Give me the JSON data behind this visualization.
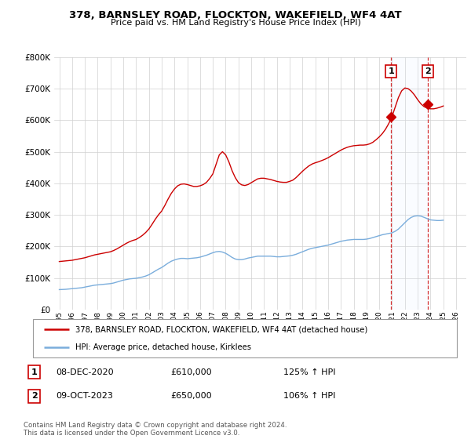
{
  "title": "378, BARNSLEY ROAD, FLOCKTON, WAKEFIELD, WF4 4AT",
  "subtitle": "Price paid vs. HM Land Registry's House Price Index (HPI)",
  "legend_line1": "378, BARNSLEY ROAD, FLOCKTON, WAKEFIELD, WF4 4AT (detached house)",
  "legend_line2": "HPI: Average price, detached house, Kirklees",
  "annotation1_date": "08-DEC-2020",
  "annotation1_price": "£610,000",
  "annotation1_hpi": "125% ↑ HPI",
  "annotation2_date": "09-OCT-2023",
  "annotation2_price": "£650,000",
  "annotation2_hpi": "106% ↑ HPI",
  "footer1": "Contains HM Land Registry data © Crown copyright and database right 2024.",
  "footer2": "This data is licensed under the Open Government Licence v3.0.",
  "red_color": "#cc0000",
  "blue_color": "#7aaddc",
  "shade_color": "#ddeeff",
  "ylim": [
    0,
    800000
  ],
  "xlim_start": 1994.6,
  "xlim_end": 2026.8,
  "sale1_x": 2020.92,
  "sale1_y": 610000,
  "sale2_x": 2023.77,
  "sale2_y": 650000,
  "hpi_x": [
    1995.0,
    1995.25,
    1995.5,
    1995.75,
    1996.0,
    1996.25,
    1996.5,
    1996.75,
    1997.0,
    1997.25,
    1997.5,
    1997.75,
    1998.0,
    1998.25,
    1998.5,
    1998.75,
    1999.0,
    1999.25,
    1999.5,
    1999.75,
    2000.0,
    2000.25,
    2000.5,
    2000.75,
    2001.0,
    2001.25,
    2001.5,
    2001.75,
    2002.0,
    2002.25,
    2002.5,
    2002.75,
    2003.0,
    2003.25,
    2003.5,
    2003.75,
    2004.0,
    2004.25,
    2004.5,
    2004.75,
    2005.0,
    2005.25,
    2005.5,
    2005.75,
    2006.0,
    2006.25,
    2006.5,
    2006.75,
    2007.0,
    2007.25,
    2007.5,
    2007.75,
    2008.0,
    2008.25,
    2008.5,
    2008.75,
    2009.0,
    2009.25,
    2009.5,
    2009.75,
    2010.0,
    2010.25,
    2010.5,
    2010.75,
    2011.0,
    2011.25,
    2011.5,
    2011.75,
    2012.0,
    2012.25,
    2012.5,
    2012.75,
    2013.0,
    2013.25,
    2013.5,
    2013.75,
    2014.0,
    2014.25,
    2014.5,
    2014.75,
    2015.0,
    2015.25,
    2015.5,
    2015.75,
    2016.0,
    2016.25,
    2016.5,
    2016.75,
    2017.0,
    2017.25,
    2017.5,
    2017.75,
    2018.0,
    2018.25,
    2018.5,
    2018.75,
    2019.0,
    2019.25,
    2019.5,
    2019.75,
    2020.0,
    2020.25,
    2020.5,
    2020.75,
    2021.0,
    2021.25,
    2021.5,
    2021.75,
    2022.0,
    2022.25,
    2022.5,
    2022.75,
    2023.0,
    2023.25,
    2023.5,
    2023.75,
    2024.0,
    2024.25,
    2024.5,
    2024.75,
    2025.0
  ],
  "hpi_y": [
    63000,
    63500,
    64000,
    65000,
    66000,
    67000,
    68000,
    69000,
    71000,
    73000,
    75000,
    77000,
    78000,
    79000,
    80000,
    81000,
    82000,
    84000,
    87000,
    90000,
    93000,
    95000,
    97000,
    98000,
    99000,
    101000,
    103000,
    106000,
    110000,
    116000,
    122000,
    128000,
    133000,
    140000,
    147000,
    153000,
    157000,
    160000,
    162000,
    162000,
    161000,
    162000,
    163000,
    164000,
    166000,
    169000,
    172000,
    176000,
    180000,
    183000,
    184000,
    182000,
    178000,
    172000,
    165000,
    160000,
    158000,
    158000,
    160000,
    163000,
    165000,
    167000,
    169000,
    169000,
    169000,
    169000,
    169000,
    168000,
    167000,
    167000,
    168000,
    169000,
    170000,
    172000,
    175000,
    179000,
    183000,
    187000,
    191000,
    194000,
    196000,
    198000,
    200000,
    202000,
    204000,
    207000,
    210000,
    213000,
    216000,
    218000,
    220000,
    221000,
    222000,
    222000,
    222000,
    222000,
    223000,
    225000,
    228000,
    231000,
    234000,
    237000,
    239000,
    241000,
    243000,
    248000,
    255000,
    265000,
    275000,
    285000,
    292000,
    296000,
    297000,
    296000,
    292000,
    288000,
    284000,
    283000,
    282000,
    282000,
    283000
  ],
  "red_x": [
    1995.0,
    1995.25,
    1995.5,
    1995.75,
    1996.0,
    1996.25,
    1996.5,
    1996.75,
    1997.0,
    1997.25,
    1997.5,
    1997.75,
    1998.0,
    1998.25,
    1998.5,
    1998.75,
    1999.0,
    1999.25,
    1999.5,
    1999.75,
    2000.0,
    2000.25,
    2000.5,
    2000.75,
    2001.0,
    2001.25,
    2001.5,
    2001.75,
    2002.0,
    2002.25,
    2002.5,
    2002.75,
    2003.0,
    2003.25,
    2003.5,
    2003.75,
    2004.0,
    2004.25,
    2004.5,
    2004.75,
    2005.0,
    2005.25,
    2005.5,
    2005.75,
    2006.0,
    2006.25,
    2006.5,
    2006.75,
    2007.0,
    2007.25,
    2007.5,
    2007.75,
    2008.0,
    2008.25,
    2008.5,
    2008.75,
    2009.0,
    2009.25,
    2009.5,
    2009.75,
    2010.0,
    2010.25,
    2010.5,
    2010.75,
    2011.0,
    2011.25,
    2011.5,
    2011.75,
    2012.0,
    2012.25,
    2012.5,
    2012.75,
    2013.0,
    2013.25,
    2013.5,
    2013.75,
    2014.0,
    2014.25,
    2014.5,
    2014.75,
    2015.0,
    2015.25,
    2015.5,
    2015.75,
    2016.0,
    2016.25,
    2016.5,
    2016.75,
    2017.0,
    2017.25,
    2017.5,
    2017.75,
    2018.0,
    2018.25,
    2018.5,
    2018.75,
    2019.0,
    2019.25,
    2019.5,
    2019.75,
    2020.0,
    2020.25,
    2020.5,
    2020.75,
    2021.0,
    2021.25,
    2021.5,
    2021.75,
    2022.0,
    2022.25,
    2022.5,
    2022.75,
    2023.0,
    2023.25,
    2023.5,
    2023.75,
    2024.0,
    2024.25,
    2024.5,
    2024.75,
    2025.0
  ],
  "red_y": [
    152000,
    153000,
    154000,
    155000,
    156000,
    158000,
    160000,
    162000,
    164000,
    167000,
    170000,
    173000,
    175000,
    177000,
    179000,
    181000,
    183000,
    187000,
    192000,
    198000,
    204000,
    210000,
    215000,
    219000,
    222000,
    228000,
    235000,
    244000,
    255000,
    270000,
    286000,
    300000,
    312000,
    330000,
    350000,
    368000,
    382000,
    392000,
    397000,
    398000,
    396000,
    393000,
    390000,
    390000,
    392000,
    396000,
    403000,
    415000,
    430000,
    460000,
    490000,
    500000,
    490000,
    468000,
    440000,
    418000,
    402000,
    395000,
    393000,
    396000,
    402000,
    408000,
    414000,
    416000,
    416000,
    414000,
    412000,
    409000,
    406000,
    404000,
    403000,
    403000,
    406000,
    410000,
    418000,
    428000,
    438000,
    447000,
    455000,
    461000,
    465000,
    468000,
    472000,
    476000,
    481000,
    487000,
    493000,
    499000,
    505000,
    510000,
    514000,
    517000,
    519000,
    520000,
    521000,
    521000,
    522000,
    525000,
    530000,
    538000,
    547000,
    558000,
    572000,
    590000,
    612000,
    642000,
    672000,
    693000,
    702000,
    700000,
    692000,
    680000,
    665000,
    652000,
    643000,
    638000,
    636000,
    636000,
    638000,
    641000,
    645000
  ],
  "xtick_years": [
    1995,
    1996,
    1997,
    1998,
    1999,
    2000,
    2001,
    2002,
    2003,
    2004,
    2005,
    2006,
    2007,
    2008,
    2009,
    2010,
    2011,
    2012,
    2013,
    2014,
    2015,
    2016,
    2017,
    2018,
    2019,
    2020,
    2021,
    2022,
    2023,
    2024,
    2025,
    2026
  ]
}
